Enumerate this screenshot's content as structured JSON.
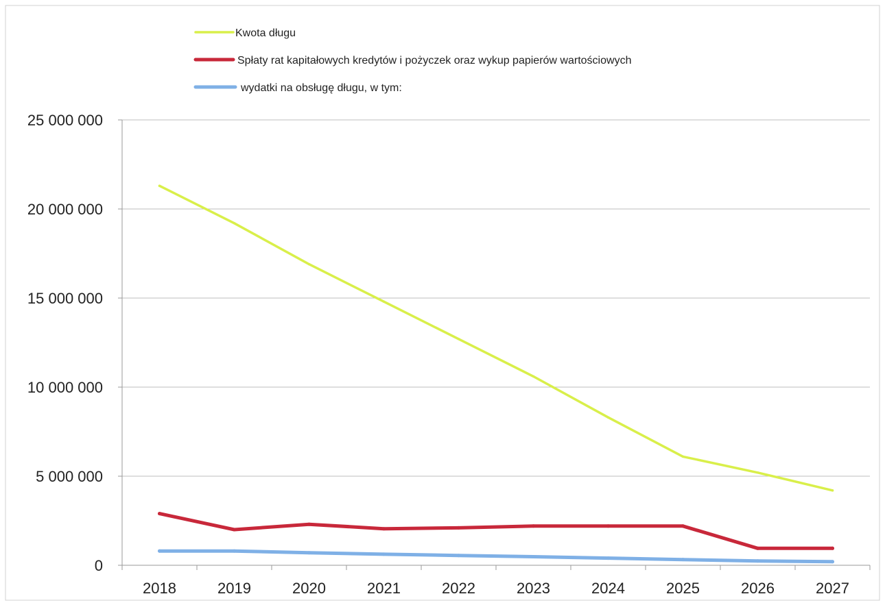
{
  "chart_data": {
    "type": "line",
    "title": "",
    "xlabel": "",
    "ylabel": "",
    "categories": [
      "2018",
      "2019",
      "2020",
      "2021",
      "2022",
      "2023",
      "2024",
      "2025",
      "2026",
      "2027"
    ],
    "ylim": [
      0,
      25000000
    ],
    "yticks": [
      0,
      5000000,
      10000000,
      15000000,
      20000000,
      25000000
    ],
    "ytick_labels": [
      "0",
      "5 000 000",
      "10 000 000",
      "15 000 000",
      "20 000 000",
      "25 000 000"
    ],
    "grid": true,
    "legend_position": "top",
    "series": [
      {
        "name": "Kwota długu",
        "color": "#d9ef4a",
        "values": [
          21300000,
          19200000,
          16900000,
          14800000,
          12700000,
          10600000,
          8300000,
          6100000,
          5200000,
          4200000
        ]
      },
      {
        "name": "Spłaty rat kapitałowych kredytów i pożyczek oraz wykup papierów wartościowych",
        "color": "#c8283a",
        "values": [
          2900000,
          2000000,
          2300000,
          2050000,
          2100000,
          2200000,
          2200000,
          2200000,
          950000,
          950000
        ]
      },
      {
        "name": "wydatki na obsługę długu, w tym:",
        "color": "#7fb0e6",
        "values": [
          800000,
          800000,
          700000,
          620000,
          550000,
          480000,
          400000,
          320000,
          240000,
          200000
        ]
      }
    ]
  }
}
